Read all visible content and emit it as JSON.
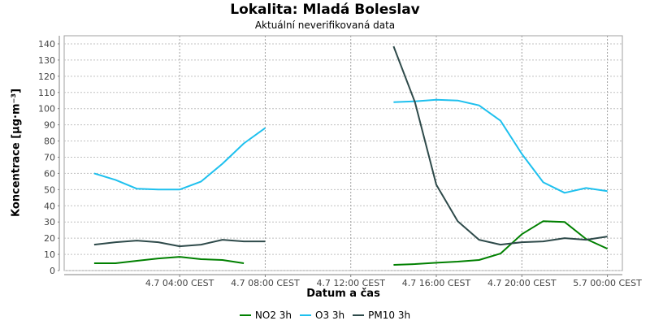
{
  "chart_data": {
    "type": "line",
    "title": "Lokalita: Mladá Boleslav",
    "subtitle": "Aktuální neverifikovaná data",
    "xlabel": "Datum a čas",
    "ylabel": "Koncentrace [µg·m⁻³]",
    "y_ticks": [
      0,
      10,
      20,
      30,
      40,
      50,
      60,
      70,
      80,
      90,
      100,
      110,
      120,
      130,
      140
    ],
    "ylim": [
      0,
      145
    ],
    "x_range_hours": [
      -1.4,
      24.7
    ],
    "x_ticks": [
      {
        "hour": 4,
        "label": "4.7 04:00 CEST"
      },
      {
        "hour": 8,
        "label": "4.7 08:00 CEST"
      },
      {
        "hour": 12,
        "label": "4.7 12:00 CEST"
      },
      {
        "hour": 16,
        "label": "4.7 16:00 CEST"
      },
      {
        "hour": 20,
        "label": "4.7 20:00 CEST"
      },
      {
        "hour": 24,
        "label": "5.7 00:00 CEST"
      }
    ],
    "grid": true,
    "legend_position": "bottom",
    "series": [
      {
        "name": "NO2 3h",
        "color": "#008000",
        "segments": [
          {
            "x": [
              0,
              1,
              2,
              3,
              4,
              5,
              6,
              7
            ],
            "y": [
              4.5,
              4.5,
              6,
              7.5,
              8.5,
              7,
              6.5,
              4.5
            ]
          },
          {
            "x": [
              14,
              15,
              16,
              17,
              18,
              19,
              20,
              21,
              22,
              23,
              24
            ],
            "y": [
              3.5,
              4,
              4.8,
              5.5,
              6.5,
              10.5,
              22.5,
              30.5,
              30,
              19.5,
              13.5
            ]
          }
        ]
      },
      {
        "name": "O3 3h",
        "color": "#1ec0ee",
        "segments": [
          {
            "x": [
              0,
              1,
              2,
              3,
              4,
              5,
              6,
              7,
              8
            ],
            "y": [
              60,
              56,
              50.5,
              50,
              50,
              55,
              66,
              78.5,
              88
            ]
          },
          {
            "x": [
              14,
              15,
              16,
              17,
              18,
              19,
              20,
              21,
              22,
              23,
              24
            ],
            "y": [
              104,
              104.5,
              105.5,
              105,
              102,
              92.5,
              72,
              54.5,
              48,
              51,
              49
            ]
          }
        ]
      },
      {
        "name": "PM10 3h",
        "color": "#2e4a4a",
        "segments": [
          {
            "x": [
              0,
              1,
              2,
              3,
              4,
              5,
              6,
              7,
              8
            ],
            "y": [
              16,
              17.5,
              18.5,
              17.5,
              15,
              16,
              19,
              18,
              18
            ]
          },
          {
            "x": [
              14,
              15,
              16,
              17,
              18,
              19,
              20,
              21,
              22,
              23,
              24
            ],
            "y": [
              138.5,
              104,
              53,
              30.5,
              19,
              16,
              17.5,
              18,
              20,
              19,
              21
            ]
          }
        ]
      }
    ]
  }
}
